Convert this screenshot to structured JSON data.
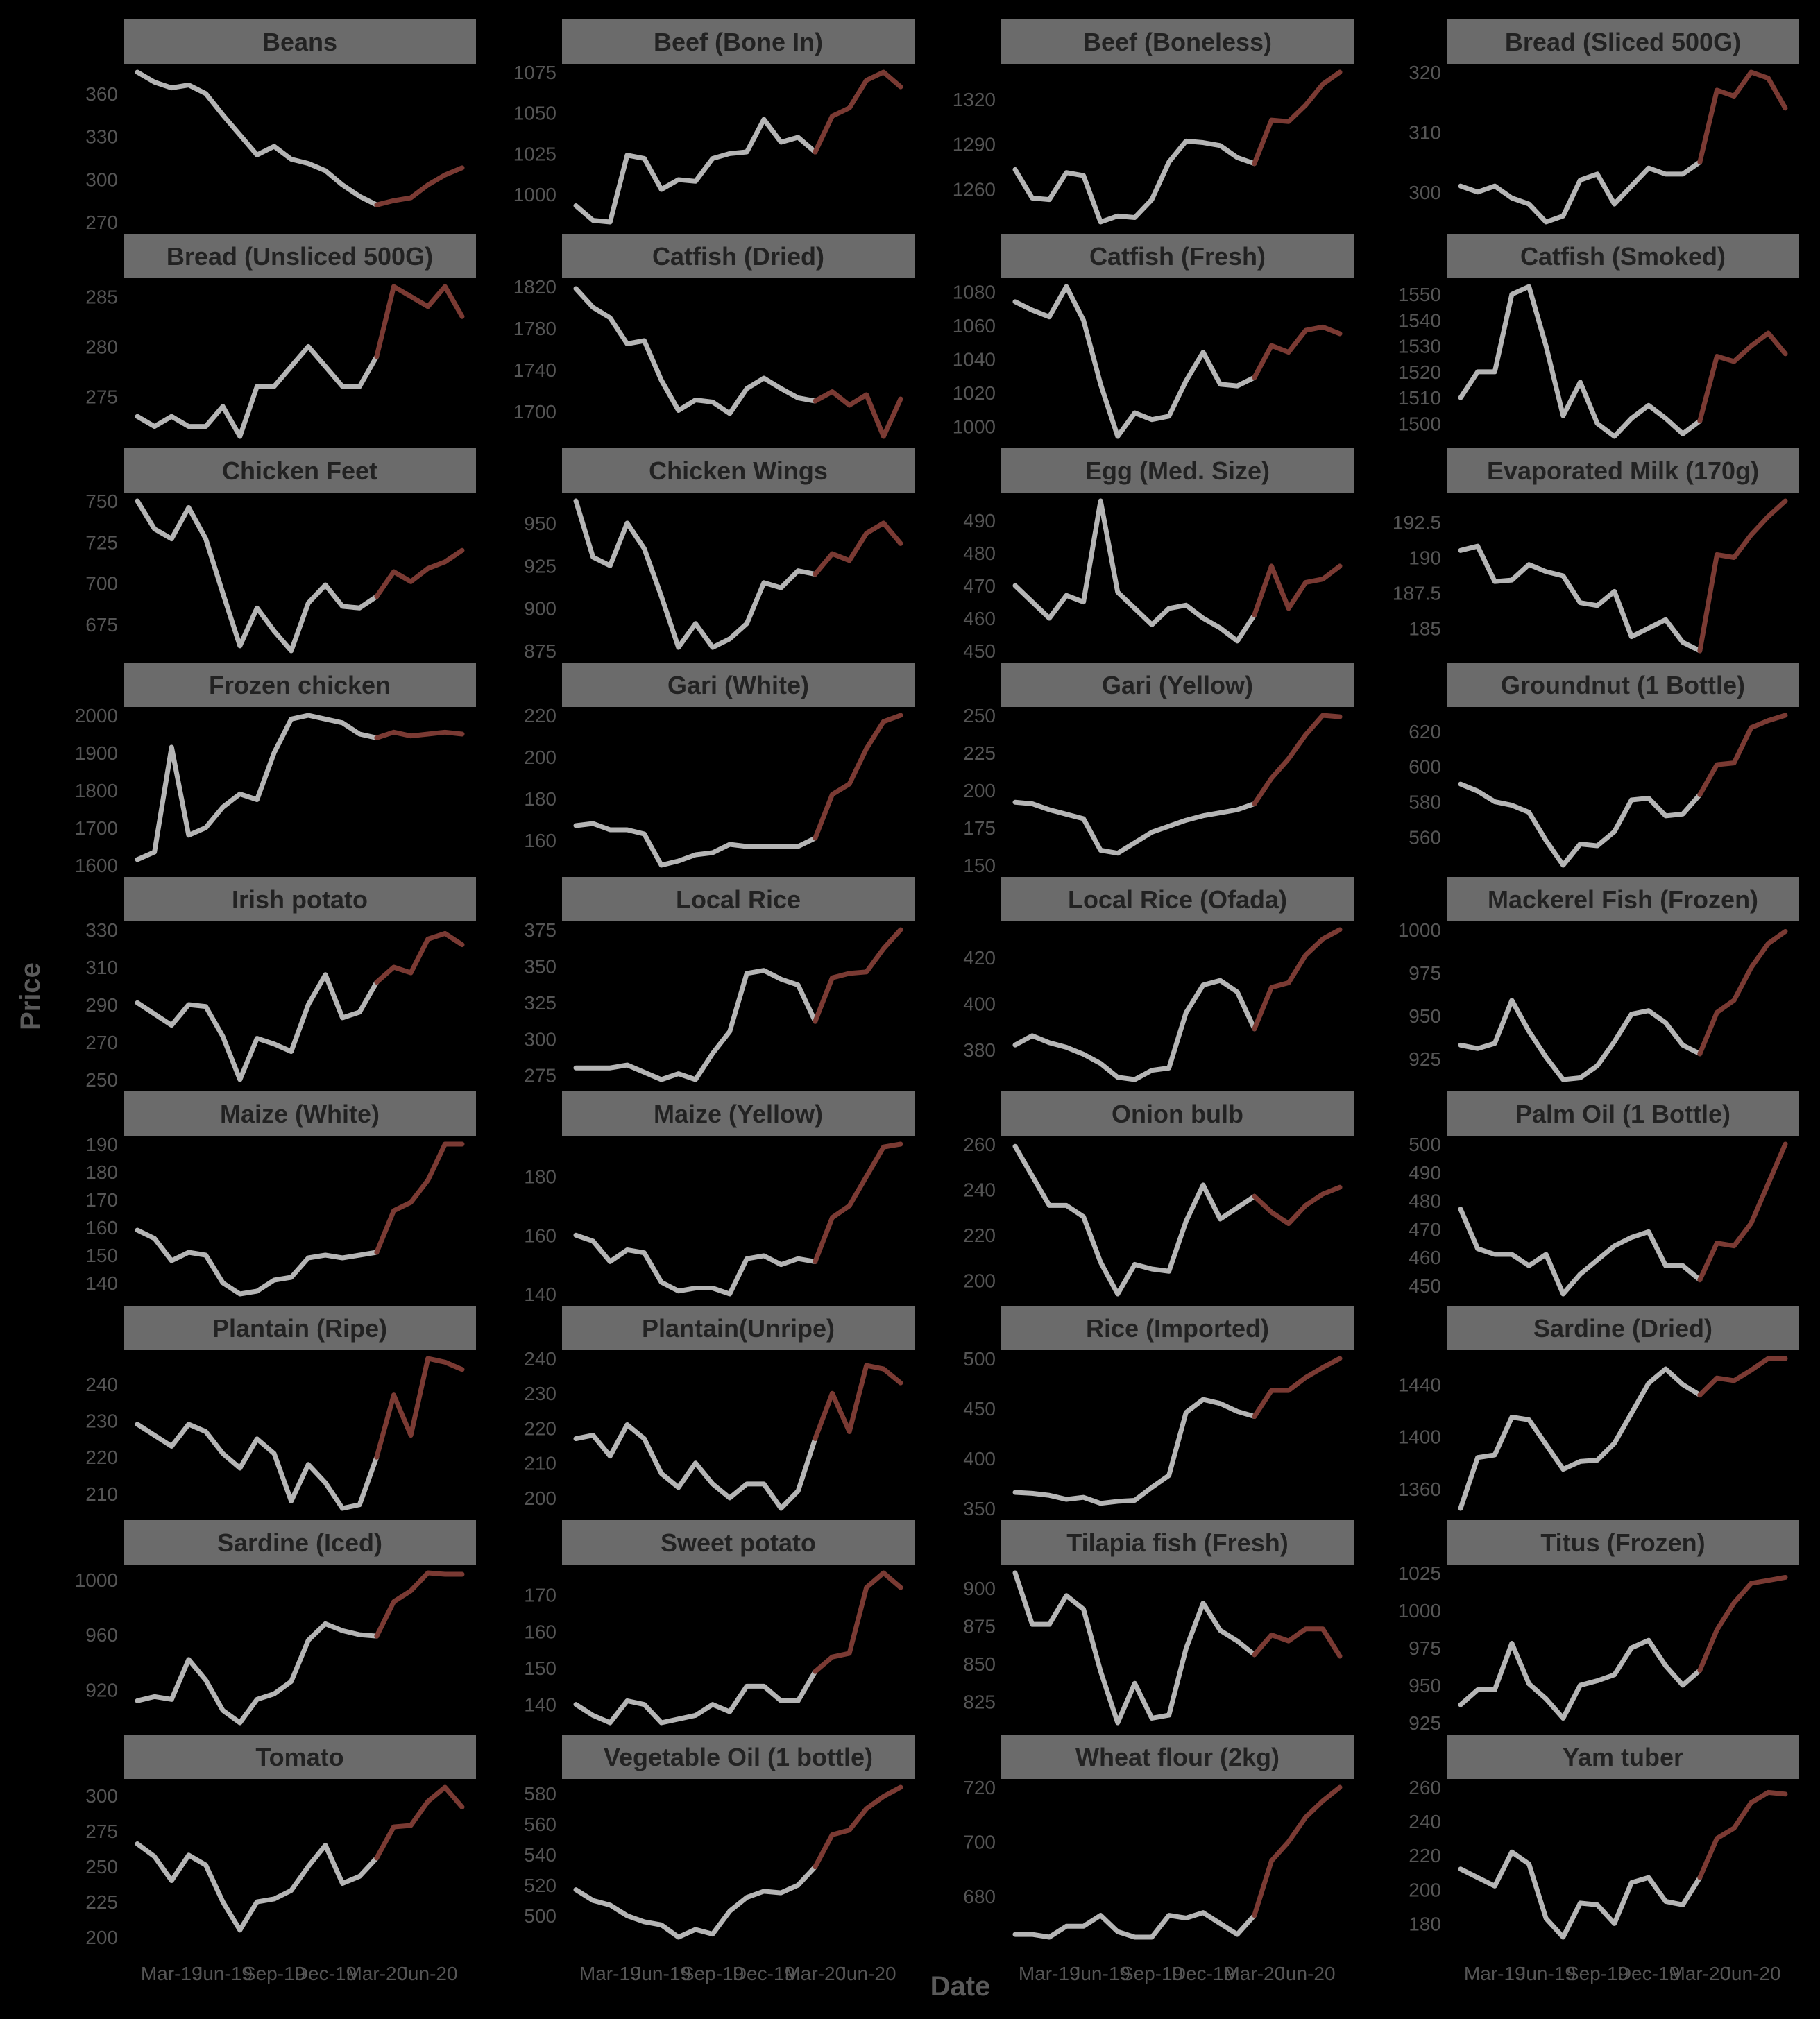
{
  "chart_data": {
    "type": "line",
    "xlabel": "Date",
    "ylabel": "Price",
    "x_ticks": [
      "Mar-19",
      "Jun-19",
      "Sep-19",
      "Dec-19",
      "Mar-20",
      "Jun-20"
    ],
    "colors": {
      "background": "#000000",
      "strip_fill": "#6b6b6b",
      "strip_text": "#222222",
      "tick_text": "#555555",
      "axis_title": "#5a5a5a",
      "before_line": "#b5b5b5",
      "after_line": "#7a3a33"
    },
    "split_index": 14,
    "panels": [
      {
        "title": "Beans",
        "ticks": [
          270,
          300,
          330,
          360
        ],
        "values": [
          375,
          368,
          364,
          366,
          360,
          345,
          331,
          317,
          323,
          314,
          311,
          306,
          296,
          288,
          282,
          285,
          287,
          296,
          303,
          308
        ]
      },
      {
        "title": "Beef (Bone In)",
        "ticks": [
          1000,
          1025,
          1050,
          1075
        ],
        "values": [
          993,
          984,
          983,
          1024,
          1022,
          1003,
          1009,
          1008,
          1022,
          1025,
          1026,
          1046,
          1032,
          1035,
          1026,
          1048,
          1053,
          1070,
          1075,
          1066
        ]
      },
      {
        "title": "Beef (Boneless)",
        "ticks": [
          1260,
          1290,
          1320
        ],
        "values": [
          1273,
          1254,
          1253,
          1271,
          1269,
          1238,
          1242,
          1241,
          1253,
          1278,
          1292,
          1291,
          1289,
          1281,
          1277,
          1306,
          1305,
          1316,
          1330,
          1338
        ]
      },
      {
        "title": "Bread (Sliced 500G)",
        "ticks": [
          300,
          310,
          320
        ],
        "values": [
          301,
          300,
          301,
          299,
          298,
          295,
          296,
          302,
          303,
          298,
          301,
          304,
          303,
          303,
          305,
          317,
          316,
          320,
          319,
          314
        ]
      },
      {
        "title": "Bread (Unsliced 500G)",
        "ticks": [
          275,
          280,
          285
        ],
        "values": [
          273,
          272,
          273,
          272,
          272,
          274,
          271,
          276,
          276,
          278,
          280,
          278,
          276,
          276,
          279,
          286,
          285,
          284,
          286,
          283
        ]
      },
      {
        "title": "Catfish (Dried)",
        "ticks": [
          1700,
          1740,
          1780,
          1820
        ],
        "values": [
          1818,
          1800,
          1790,
          1765,
          1768,
          1730,
          1701,
          1711,
          1709,
          1698,
          1722,
          1732,
          1722,
          1713,
          1710,
          1719,
          1706,
          1716,
          1676,
          1712
        ]
      },
      {
        "title": "Catfish (Fresh)",
        "ticks": [
          1000,
          1020,
          1040,
          1060,
          1080
        ],
        "values": [
          1074,
          1069,
          1065,
          1083,
          1063,
          1025,
          994,
          1008,
          1004,
          1006,
          1027,
          1044,
          1025,
          1024,
          1029,
          1048,
          1044,
          1057,
          1059,
          1055
        ]
      },
      {
        "title": "Catfish (Smoked)",
        "ticks": [
          1500,
          1510,
          1520,
          1530,
          1540,
          1550
        ],
        "values": [
          1510,
          1520,
          1520,
          1550,
          1553,
          1530,
          1503,
          1516,
          1500,
          1495,
          1502,
          1507,
          1502,
          1496,
          1501,
          1526,
          1524,
          1530,
          1535,
          1527
        ]
      },
      {
        "title": "Chicken Feet",
        "ticks": [
          675,
          700,
          725,
          750
        ],
        "values": [
          750,
          733,
          727,
          746,
          727,
          694,
          662,
          685,
          671,
          659,
          688,
          699,
          686,
          685,
          692,
          707,
          701,
          709,
          713,
          720
        ]
      },
      {
        "title": "Chicken Wings",
        "ticks": [
          875,
          900,
          925,
          950
        ],
        "values": [
          963,
          930,
          925,
          950,
          935,
          907,
          877,
          891,
          877,
          882,
          891,
          915,
          912,
          922,
          920,
          932,
          928,
          944,
          950,
          938
        ]
      },
      {
        "title": "Egg (Med. Size)",
        "ticks": [
          450,
          460,
          470,
          480,
          490
        ],
        "values": [
          470,
          465,
          460,
          467,
          465,
          496,
          468,
          463,
          458,
          463,
          464,
          460,
          457,
          453,
          461,
          476,
          463,
          471,
          472,
          476
        ]
      },
      {
        "title": "Evaporated Milk (170g)",
        "ticks": [
          185.0,
          187.5,
          190.0,
          192.5
        ],
        "values": [
          190.5,
          190.8,
          188.3,
          188.4,
          189.5,
          189.0,
          188.7,
          186.8,
          186.6,
          187.6,
          184.4,
          185.0,
          185.6,
          184.0,
          183.4,
          190.2,
          190.0,
          191.6,
          192.9,
          194.0
        ]
      },
      {
        "title": "Frozen chicken",
        "ticks": [
          1600,
          1700,
          1800,
          1900,
          2000
        ],
        "values": [
          1615,
          1635,
          1915,
          1680,
          1700,
          1755,
          1790,
          1775,
          1900,
          1990,
          2000,
          1990,
          1980,
          1950,
          1940,
          1955,
          1945,
          1950,
          1955,
          1950
        ]
      },
      {
        "title": "Gari (White)",
        "ticks": [
          160,
          180,
          200,
          220
        ],
        "values": [
          167,
          168,
          165,
          165,
          163,
          148,
          150,
          153,
          154,
          158,
          157,
          157,
          157,
          157,
          161,
          182,
          187,
          204,
          217,
          220
        ]
      },
      {
        "title": "Gari (Yellow)",
        "ticks": [
          150,
          175,
          200,
          225,
          250
        ],
        "values": [
          192,
          191,
          187,
          184,
          181,
          160,
          158,
          165,
          172,
          176,
          180,
          183,
          185,
          187,
          191,
          208,
          221,
          237,
          250,
          249
        ]
      },
      {
        "title": "Groundnut (1 Bottle)",
        "ticks": [
          560,
          580,
          600,
          620
        ],
        "values": [
          590,
          586,
          580,
          578,
          574,
          558,
          544,
          556,
          555,
          563,
          581,
          582,
          572,
          573,
          584,
          601,
          602,
          622,
          626,
          629
        ]
      },
      {
        "title": "Irish potato",
        "ticks": [
          250,
          270,
          290,
          310,
          330
        ],
        "values": [
          291,
          285,
          279,
          290,
          289,
          273,
          250,
          272,
          269,
          265,
          290,
          306,
          283,
          286,
          302,
          310,
          307,
          325,
          328,
          322
        ]
      },
      {
        "title": "Local Rice",
        "ticks": [
          275,
          300,
          325,
          350,
          375
        ],
        "values": [
          280,
          280,
          280,
          282,
          277,
          272,
          276,
          272,
          290,
          305,
          345,
          347,
          341,
          337,
          312,
          342,
          345,
          346,
          362,
          375
        ]
      },
      {
        "title": "Local Rice (Ofada)",
        "ticks": [
          380,
          400,
          420
        ],
        "values": [
          382,
          386,
          383,
          381,
          378,
          374,
          368,
          367,
          371,
          372,
          396,
          408,
          410,
          405,
          389,
          407,
          409,
          421,
          428,
          432
        ]
      },
      {
        "title": "Mackerel Fish (Frozen)",
        "ticks": [
          925,
          950,
          975,
          1000
        ],
        "values": [
          933,
          931,
          934,
          959,
          941,
          926,
          913,
          914,
          921,
          935,
          951,
          953,
          946,
          933,
          928,
          952,
          959,
          978,
          992,
          999
        ]
      },
      {
        "title": "Maize (White)",
        "ticks": [
          140,
          150,
          160,
          170,
          180,
          190
        ],
        "values": [
          159,
          156,
          148,
          151,
          150,
          140,
          136,
          137,
          141,
          142,
          149,
          150,
          149,
          150,
          151,
          166,
          169,
          177,
          190,
          190
        ]
      },
      {
        "title": "Maize (Yellow)",
        "ticks": [
          140,
          160,
          180
        ],
        "values": [
          160,
          158,
          151,
          155,
          154,
          144,
          141,
          142,
          142,
          140,
          152,
          153,
          150,
          152,
          151,
          166,
          170,
          180,
          190,
          191
        ]
      },
      {
        "title": "Onion bulb",
        "ticks": [
          200,
          220,
          240,
          260
        ],
        "values": [
          259,
          246,
          233,
          233,
          228,
          208,
          194,
          207,
          205,
          204,
          226,
          242,
          227,
          232,
          237,
          230,
          225,
          233,
          238,
          241
        ]
      },
      {
        "title": "Palm Oil (1 Bottle)",
        "ticks": [
          450,
          460,
          470,
          480,
          490,
          500
        ],
        "values": [
          477,
          463,
          461,
          461,
          457,
          461,
          447,
          454,
          459,
          464,
          467,
          469,
          457,
          457,
          452,
          465,
          464,
          472,
          486,
          500
        ]
      },
      {
        "title": "Plantain (Ripe)",
        "ticks": [
          210,
          220,
          230,
          240
        ],
        "values": [
          229,
          226,
          223,
          229,
          227,
          221,
          217,
          225,
          221,
          208,
          218,
          213,
          206,
          207,
          220,
          237,
          226,
          247,
          246,
          244
        ]
      },
      {
        "title": "Plantain(Unripe)",
        "ticks": [
          200,
          210,
          220,
          230,
          240
        ],
        "values": [
          217,
          218,
          212,
          221,
          217,
          207,
          203,
          210,
          204,
          200,
          204,
          204,
          197,
          202,
          217,
          230,
          219,
          238,
          237,
          233
        ]
      },
      {
        "title": "Rice (Imported)",
        "ticks": [
          350,
          400,
          450,
          500
        ],
        "values": [
          366,
          365,
          363,
          359,
          361,
          355,
          357,
          358,
          371,
          383,
          446,
          459,
          455,
          447,
          442,
          468,
          468,
          481,
          491,
          500
        ]
      },
      {
        "title": "Sardine (Dried)",
        "ticks": [
          1360,
          1400,
          1440
        ],
        "values": [
          1345,
          1384,
          1386,
          1415,
          1413,
          1394,
          1375,
          1381,
          1382,
          1395,
          1418,
          1441,
          1452,
          1440,
          1432,
          1445,
          1443,
          1451,
          1460,
          1460
        ]
      },
      {
        "title": "Sardine (Iced)",
        "ticks": [
          920,
          960,
          1000
        ],
        "values": [
          912,
          915,
          913,
          942,
          927,
          905,
          896,
          913,
          917,
          926,
          956,
          968,
          963,
          960,
          959,
          984,
          992,
          1005,
          1004,
          1004
        ]
      },
      {
        "title": "Sweet potato",
        "ticks": [
          140,
          150,
          160,
          170
        ],
        "values": [
          140,
          137,
          135,
          141,
          140,
          135,
          136,
          137,
          140,
          138,
          145,
          145,
          141,
          141,
          149,
          153,
          154,
          172,
          176,
          172
        ]
      },
      {
        "title": "Tilapia fish (Fresh)",
        "ticks": [
          825,
          850,
          875,
          900
        ],
        "values": [
          910,
          876,
          876,
          895,
          886,
          845,
          811,
          837,
          814,
          816,
          860,
          890,
          872,
          865,
          856,
          869,
          865,
          873,
          873,
          855
        ]
      },
      {
        "title": "Titus (Frozen)",
        "ticks": [
          925,
          950,
          975,
          1000,
          1025
        ],
        "values": [
          937,
          947,
          947,
          978,
          951,
          941,
          928,
          950,
          953,
          957,
          975,
          980,
          963,
          950,
          960,
          987,
          1005,
          1018,
          1020,
          1022
        ]
      },
      {
        "title": "Tomato",
        "ticks": [
          200,
          225,
          250,
          275,
          300
        ],
        "values": [
          266,
          257,
          240,
          258,
          251,
          225,
          205,
          225,
          227,
          233,
          250,
          265,
          238,
          243,
          256,
          278,
          279,
          296,
          306,
          292
        ]
      },
      {
        "title": "Vegetable Oil (1 bottle)",
        "ticks": [
          500,
          520,
          540,
          560,
          580
        ],
        "values": [
          517,
          510,
          507,
          500,
          496,
          494,
          486,
          491,
          488,
          503,
          512,
          516,
          515,
          520,
          532,
          553,
          556,
          570,
          578,
          584
        ]
      },
      {
        "title": "Wheat flour (2kg)",
        "ticks": [
          680,
          700,
          720
        ],
        "values": [
          666,
          666,
          665,
          669,
          669,
          673,
          667,
          665,
          665,
          673,
          672,
          674,
          670,
          666,
          673,
          693,
          700,
          709,
          715,
          720
        ]
      },
      {
        "title": "Yam tuber",
        "ticks": [
          180,
          200,
          220,
          240,
          260
        ],
        "values": [
          212,
          207,
          202,
          222,
          215,
          183,
          172,
          192,
          191,
          180,
          204,
          207,
          193,
          191,
          207,
          230,
          236,
          251,
          257,
          256
        ]
      }
    ]
  }
}
